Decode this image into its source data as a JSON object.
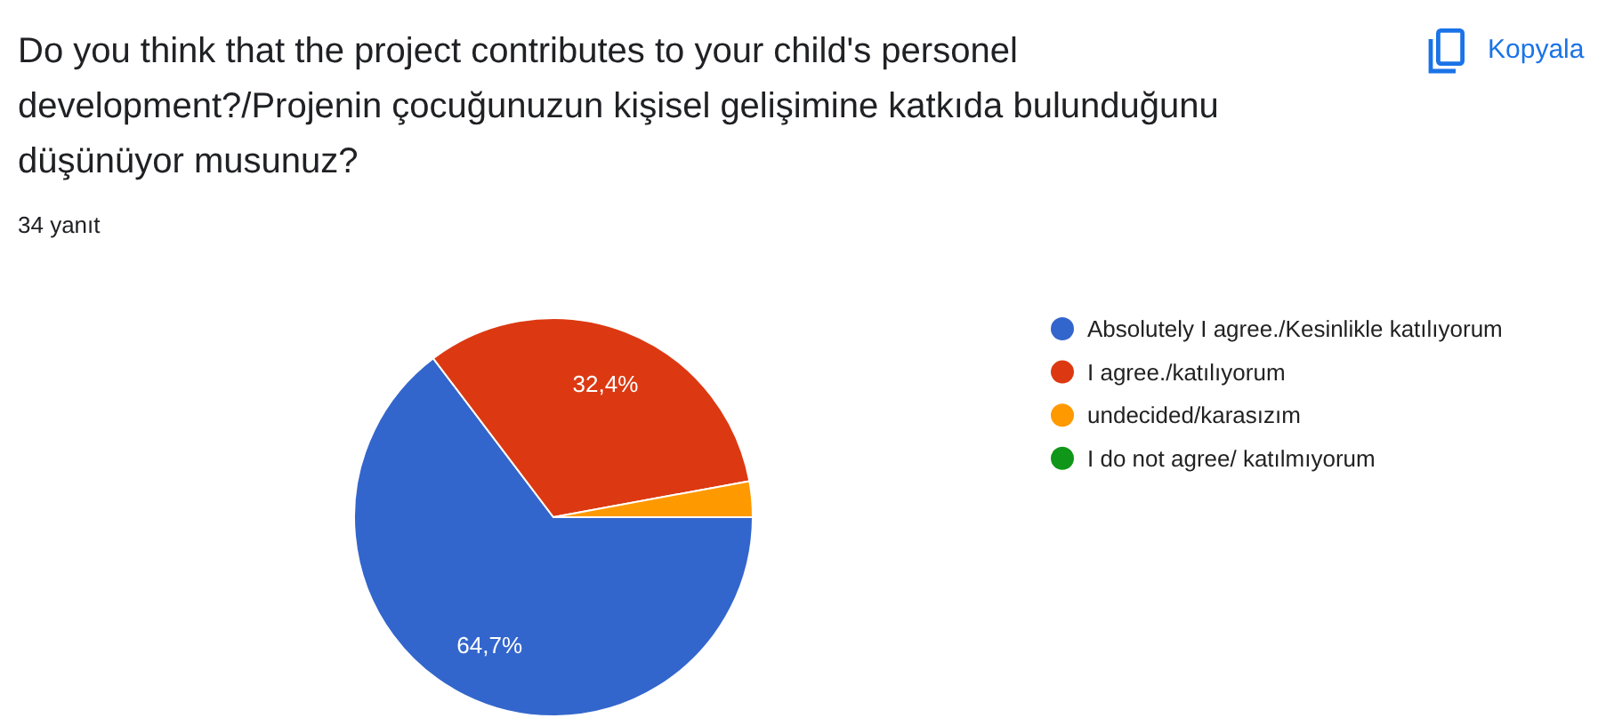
{
  "chart_data": {
    "type": "pie",
    "title": "Do you think that the project contributes to your child's personel development?/Projenin çocuğunuzun kişisel gelişimine katkıda bulunduğunu düşünüyor musunuz?",
    "subtitle": "34 yanıt",
    "categories": [
      "Absolutely I agree./Kesinlikle katılıyorum",
      "I agree./katılıyorum",
      "undecided/karasızım",
      "I do not agree/ katılmıyorum"
    ],
    "values": [
      64.7,
      32.4,
      2.9,
      0
    ],
    "colors": [
      "#3366cc",
      "#dc3912",
      "#ff9900",
      "#109618"
    ],
    "value_labels": [
      "64,7%",
      "32,4%",
      null,
      null
    ],
    "legend": "right",
    "annotations": [
      "Kopyala"
    ]
  }
}
